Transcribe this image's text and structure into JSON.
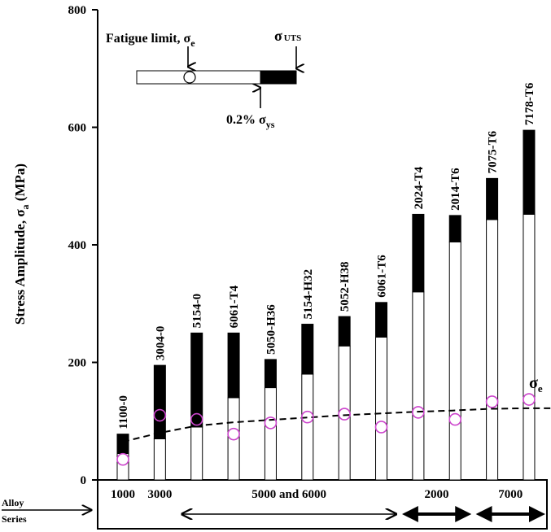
{
  "chart_data": {
    "type": "bar",
    "title": "",
    "ylabel": "Stress Amplitude, σ",
    "ylabel_sub": "a",
    "ylabel_unit": " (MPa)",
    "xlabel": "",
    "ylim": [
      0,
      800
    ],
    "yticks": [
      0,
      200,
      400,
      600,
      800
    ],
    "grid": false,
    "categories": [
      "1100-0",
      "3004-0",
      "5154-0",
      "6061-T4",
      "5050-H36",
      "5154-H32",
      "5052-H38",
      "6061-T6",
      "2024-T4",
      "2014-T6",
      "7075-T6",
      "7178-T6"
    ],
    "series": [
      {
        "name": "0.2% σys",
        "values": [
          45,
          70,
          90,
          140,
          157,
          180,
          228,
          243,
          320,
          405,
          443,
          452
        ]
      },
      {
        "name": "σUTS",
        "values": [
          78,
          195,
          250,
          250,
          205,
          265,
          278,
          302,
          452,
          450,
          513,
          595
        ]
      },
      {
        "name": "Fatigue limit, σe",
        "values": [
          35,
          110,
          103,
          78,
          97,
          107,
          112,
          90,
          115,
          103,
          133,
          137
        ]
      }
    ],
    "fatigue_trend": {
      "label": "σ",
      "label_sub": "e",
      "x_start": 1,
      "x_end": 12.9,
      "y_values": [
        65,
        80,
        92,
        98,
        102,
        106,
        110,
        113,
        116,
        118,
        121,
        122,
        122
      ]
    },
    "legend": {
      "fatigue_label": "Fatigue limit, σ",
      "fatigue_sub": "e",
      "uts_label": "σ",
      "uts_sub": "UTS",
      "ys_label": "0.2% σ",
      "ys_sub": "ys"
    },
    "alloy_series_label_1": "Alloy",
    "alloy_series_label_2": "Series",
    "alloy_groups": [
      {
        "label": "1000",
        "from": 1,
        "to": 1,
        "arrow": "none"
      },
      {
        "label": "3000",
        "from": 2,
        "to": 2,
        "arrow": "none"
      },
      {
        "label": "5000 and 6000",
        "from": 3,
        "to": 8,
        "arrow": "thin"
      },
      {
        "label": "2000",
        "from": 9,
        "to": 10,
        "arrow": "thick"
      },
      {
        "label": "7000",
        "from": 11,
        "to": 12,
        "arrow": "thick"
      }
    ],
    "colors": {
      "ys_bar": "#ffffff",
      "uts_bar": "#000000",
      "circle": "#cc44cc",
      "axis": "#000000"
    }
  }
}
